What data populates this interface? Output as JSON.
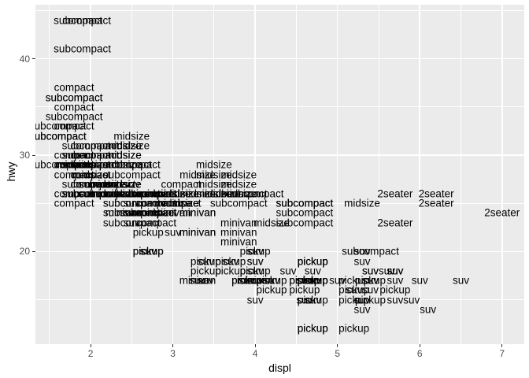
{
  "colors": {
    "panel_bg": "#EBEBEB",
    "grid": "#FFFFFF",
    "label_text": "#000000",
    "axis_text": "#4D4D4D",
    "axis_title": "#000000",
    "tick_mark": "#333333",
    "figure_bg": "#FFFFFF"
  },
  "chart_data": {
    "type": "scatter",
    "subtype": "text-labels",
    "title": "",
    "xlabel": "displ",
    "ylabel": "hwy",
    "xlim": [
      1.33,
      7.27
    ],
    "ylim": [
      10.4,
      45.6
    ],
    "x_ticks": [
      2,
      3,
      4,
      5,
      6,
      7
    ],
    "y_ticks": [
      20,
      30,
      40
    ],
    "x_minor_ticks": [
      1.5,
      2.5,
      3.5,
      4.5,
      5.5,
      6.5
    ],
    "y_minor_ticks": [
      15,
      25,
      35,
      45
    ],
    "grid": true,
    "legend": false,
    "label_field": "vehicle class",
    "points": [
      [
        1.8,
        29,
        "compact"
      ],
      [
        1.8,
        29,
        "compact"
      ],
      [
        2.0,
        31,
        "compact"
      ],
      [
        2.0,
        30,
        "compact"
      ],
      [
        2.8,
        26,
        "compact"
      ],
      [
        2.8,
        26,
        "compact"
      ],
      [
        3.1,
        27,
        "compact"
      ],
      [
        1.8,
        26,
        "compact"
      ],
      [
        1.8,
        25,
        "compact"
      ],
      [
        2.0,
        28,
        "compact"
      ],
      [
        2.0,
        27,
        "compact"
      ],
      [
        2.8,
        25,
        "compact"
      ],
      [
        2.8,
        25,
        "compact"
      ],
      [
        3.1,
        25,
        "compact"
      ],
      [
        3.1,
        25,
        "compact"
      ],
      [
        1.8,
        28,
        "compact"
      ],
      [
        1.8,
        30,
        "compact"
      ],
      [
        1.8,
        33,
        "compact"
      ],
      [
        1.8,
        35,
        "compact"
      ],
      [
        1.8,
        37,
        "compact"
      ],
      [
        2.0,
        29,
        "compact"
      ],
      [
        2.0,
        29,
        "compact"
      ],
      [
        2.0,
        28,
        "compact"
      ],
      [
        2.0,
        29,
        "compact"
      ],
      [
        2.8,
        24,
        "compact"
      ],
      [
        1.9,
        44,
        "compact"
      ],
      [
        2.0,
        29,
        "compact"
      ],
      [
        2.0,
        29,
        "compact"
      ],
      [
        2.0,
        29,
        "compact"
      ],
      [
        2.0,
        29,
        "compact"
      ],
      [
        2.5,
        29,
        "compact"
      ],
      [
        2.5,
        29,
        "compact"
      ],
      [
        2.8,
        24,
        "compact"
      ],
      [
        2.8,
        23,
        "compact"
      ],
      [
        2.8,
        24,
        "midsize"
      ],
      [
        3.1,
        25,
        "midsize"
      ],
      [
        4.2,
        23,
        "midsize"
      ],
      [
        2.4,
        30,
        "midsize"
      ],
      [
        2.4,
        29,
        "midsize"
      ],
      [
        3.1,
        26,
        "midsize"
      ],
      [
        3.5,
        29,
        "midsize"
      ],
      [
        3.6,
        26,
        "midsize"
      ],
      [
        2.4,
        26,
        "midsize"
      ],
      [
        2.4,
        27,
        "midsize"
      ],
      [
        2.4,
        30,
        "midsize"
      ],
      [
        2.4,
        31,
        "midsize"
      ],
      [
        2.5,
        26,
        "midsize"
      ],
      [
        2.5,
        26,
        "midsize"
      ],
      [
        3.3,
        28,
        "midsize"
      ],
      [
        2.4,
        29,
        "midsize"
      ],
      [
        2.4,
        27,
        "midsize"
      ],
      [
        2.5,
        31,
        "midsize"
      ],
      [
        2.5,
        32,
        "midsize"
      ],
      [
        3.5,
        26,
        "midsize"
      ],
      [
        3.5,
        27,
        "midsize"
      ],
      [
        3.0,
        26,
        "midsize"
      ],
      [
        3.0,
        25,
        "midsize"
      ],
      [
        3.5,
        26,
        "midsize"
      ],
      [
        3.1,
        26,
        "midsize"
      ],
      [
        3.8,
        26,
        "midsize"
      ],
      [
        3.8,
        27,
        "midsize"
      ],
      [
        3.8,
        28,
        "midsize"
      ],
      [
        5.3,
        25,
        "midsize"
      ],
      [
        2.2,
        26,
        "midsize"
      ],
      [
        2.2,
        27,
        "midsize"
      ],
      [
        2.4,
        30,
        "midsize"
      ],
      [
        2.4,
        31,
        "midsize"
      ],
      [
        3.0,
        26,
        "midsize"
      ],
      [
        3.0,
        26,
        "midsize"
      ],
      [
        3.5,
        28,
        "midsize"
      ],
      [
        2.2,
        26,
        "midsize"
      ],
      [
        2.2,
        27,
        "midsize"
      ],
      [
        2.4,
        31,
        "midsize"
      ],
      [
        2.4,
        31,
        "midsize"
      ],
      [
        3.0,
        26,
        "midsize"
      ],
      [
        3.0,
        26,
        "midsize"
      ],
      [
        3.3,
        26,
        "midsize"
      ],
      [
        1.8,
        29,
        "midsize"
      ],
      [
        1.8,
        29,
        "midsize"
      ],
      [
        2.0,
        28,
        "midsize"
      ],
      [
        2.0,
        29,
        "midsize"
      ],
      [
        2.8,
        26,
        "midsize"
      ],
      [
        2.8,
        26,
        "midsize"
      ],
      [
        3.6,
        26,
        "midsize"
      ],
      [
        2.4,
        24,
        "minivan"
      ],
      [
        3.0,
        24,
        "minivan"
      ],
      [
        3.3,
        22,
        "minivan"
      ],
      [
        3.3,
        22,
        "minivan"
      ],
      [
        3.3,
        24,
        "minivan"
      ],
      [
        3.3,
        24,
        "minivan"
      ],
      [
        3.3,
        17,
        "minivan"
      ],
      [
        3.8,
        22,
        "minivan"
      ],
      [
        3.8,
        21,
        "minivan"
      ],
      [
        3.8,
        23,
        "minivan"
      ],
      [
        4.0,
        17,
        "minivan"
      ],
      [
        3.7,
        19,
        "pickup"
      ],
      [
        3.7,
        18,
        "pickup"
      ],
      [
        3.9,
        17,
        "pickup"
      ],
      [
        3.9,
        17,
        "pickup"
      ],
      [
        4.7,
        19,
        "pickup"
      ],
      [
        4.7,
        19,
        "pickup"
      ],
      [
        4.7,
        12,
        "pickup"
      ],
      [
        5.2,
        17,
        "pickup"
      ],
      [
        5.2,
        15,
        "pickup"
      ],
      [
        4.7,
        17,
        "pickup"
      ],
      [
        4.7,
        15,
        "pickup"
      ],
      [
        4.7,
        17,
        "pickup"
      ],
      [
        4.7,
        17,
        "pickup"
      ],
      [
        4.7,
        19,
        "pickup"
      ],
      [
        4.7,
        17,
        "pickup"
      ],
      [
        4.7,
        12,
        "pickup"
      ],
      [
        5.2,
        16,
        "pickup"
      ],
      [
        5.2,
        12,
        "pickup"
      ],
      [
        5.7,
        16,
        "pickup"
      ],
      [
        4.2,
        17,
        "pickup"
      ],
      [
        4.2,
        16,
        "pickup"
      ],
      [
        4.6,
        16,
        "pickup"
      ],
      [
        4.6,
        17,
        "pickup"
      ],
      [
        4.6,
        17,
        "pickup"
      ],
      [
        5.4,
        15,
        "pickup"
      ],
      [
        5.4,
        17,
        "pickup"
      ],
      [
        2.7,
        20,
        "pickup"
      ],
      [
        2.7,
        20,
        "pickup"
      ],
      [
        2.7,
        22,
        "pickup"
      ],
      [
        3.4,
        19,
        "pickup"
      ],
      [
        3.4,
        18,
        "pickup"
      ],
      [
        4.0,
        20,
        "pickup"
      ],
      [
        4.0,
        18,
        "pickup"
      ],
      [
        1.6,
        33,
        "subcompact"
      ],
      [
        1.6,
        32,
        "subcompact"
      ],
      [
        1.6,
        32,
        "subcompact"
      ],
      [
        1.6,
        29,
        "subcompact"
      ],
      [
        1.6,
        32,
        "subcompact"
      ],
      [
        1.8,
        34,
        "subcompact"
      ],
      [
        1.8,
        36,
        "subcompact"
      ],
      [
        1.8,
        36,
        "subcompact"
      ],
      [
        2.0,
        29,
        "subcompact"
      ],
      [
        1.9,
        44,
        "subcompact"
      ],
      [
        1.9,
        41,
        "subcompact"
      ],
      [
        2.0,
        29,
        "subcompact"
      ],
      [
        2.0,
        26,
        "subcompact"
      ],
      [
        2.5,
        28,
        "subcompact"
      ],
      [
        2.5,
        29,
        "subcompact"
      ],
      [
        2.0,
        26,
        "subcompact"
      ],
      [
        2.0,
        27,
        "subcompact"
      ],
      [
        2.0,
        30,
        "subcompact"
      ],
      [
        2.0,
        31,
        "subcompact"
      ],
      [
        2.7,
        26,
        "subcompact"
      ],
      [
        2.7,
        26,
        "subcompact"
      ],
      [
        2.7,
        24,
        "subcompact"
      ],
      [
        3.8,
        26,
        "subcompact"
      ],
      [
        3.8,
        25,
        "subcompact"
      ],
      [
        4.0,
        26,
        "subcompact"
      ],
      [
        4.6,
        24,
        "subcompact"
      ],
      [
        4.6,
        25,
        "subcompact"
      ],
      [
        4.6,
        25,
        "subcompact"
      ],
      [
        4.6,
        25,
        "subcompact"
      ],
      [
        4.6,
        23,
        "subcompact"
      ],
      [
        5.4,
        20,
        "subcompact"
      ],
      [
        2.2,
        26,
        "subcompact"
      ],
      [
        2.2,
        27,
        "subcompact"
      ],
      [
        2.5,
        25,
        "subcompact"
      ],
      [
        2.5,
        25,
        "subcompact"
      ],
      [
        2.5,
        26,
        "subcompact"
      ],
      [
        2.5,
        23,
        "subcompact"
      ],
      [
        2.5,
        24,
        "subcompact"
      ],
      [
        2.5,
        26,
        "subcompact"
      ],
      [
        5.3,
        20,
        "suv"
      ],
      [
        5.3,
        15,
        "suv"
      ],
      [
        5.3,
        20,
        "suv"
      ],
      [
        5.7,
        17,
        "suv"
      ],
      [
        6.0,
        17,
        "suv"
      ],
      [
        5.3,
        19,
        "suv"
      ],
      [
        5.3,
        14,
        "suv"
      ],
      [
        5.7,
        15,
        "suv"
      ],
      [
        6.5,
        17,
        "suv"
      ],
      [
        3.9,
        17,
        "suv"
      ],
      [
        4.7,
        17,
        "suv"
      ],
      [
        4.7,
        17,
        "suv"
      ],
      [
        4.7,
        18,
        "suv"
      ],
      [
        5.2,
        16,
        "suv"
      ],
      [
        5.7,
        18,
        "suv"
      ],
      [
        5.9,
        15,
        "suv"
      ],
      [
        4.6,
        17,
        "suv"
      ],
      [
        5.4,
        17,
        "suv"
      ],
      [
        5.4,
        18,
        "suv"
      ],
      [
        4.0,
        17,
        "suv"
      ],
      [
        4.0,
        17,
        "suv"
      ],
      [
        4.0,
        18,
        "suv"
      ],
      [
        4.0,
        17,
        "suv"
      ],
      [
        4.0,
        19,
        "suv"
      ],
      [
        4.6,
        17,
        "suv"
      ],
      [
        3.0,
        22,
        "suv"
      ],
      [
        3.7,
        19,
        "suv"
      ],
      [
        4.0,
        17,
        "suv"
      ],
      [
        4.7,
        15,
        "suv"
      ],
      [
        4.7,
        17,
        "suv"
      ],
      [
        4.7,
        17,
        "suv"
      ],
      [
        5.7,
        18,
        "suv"
      ],
      [
        6.1,
        14,
        "suv"
      ],
      [
        4.0,
        15,
        "suv"
      ],
      [
        4.2,
        17,
        "suv"
      ],
      [
        4.4,
        18,
        "suv"
      ],
      [
        4.6,
        15,
        "suv"
      ],
      [
        5.4,
        17,
        "suv"
      ],
      [
        5.4,
        16,
        "suv"
      ],
      [
        5.4,
        18,
        "suv"
      ],
      [
        4.0,
        17,
        "suv"
      ],
      [
        4.0,
        19,
        "suv"
      ],
      [
        4.6,
        17,
        "suv"
      ],
      [
        5.0,
        17,
        "suv"
      ],
      [
        3.3,
        17,
        "suv"
      ],
      [
        3.3,
        17,
        "suv"
      ],
      [
        4.0,
        20,
        "suv"
      ],
      [
        5.6,
        18,
        "suv"
      ],
      [
        2.5,
        26,
        "suv"
      ],
      [
        2.5,
        24,
        "suv"
      ],
      [
        2.5,
        27,
        "suv"
      ],
      [
        2.5,
        25,
        "suv"
      ],
      [
        2.5,
        23,
        "suv"
      ],
      [
        2.5,
        24,
        "suv"
      ],
      [
        2.7,
        20,
        "suv"
      ],
      [
        2.7,
        20,
        "suv"
      ],
      [
        3.4,
        19,
        "suv"
      ],
      [
        3.4,
        17,
        "suv"
      ],
      [
        4.0,
        20,
        "suv"
      ],
      [
        4.7,
        17,
        "suv"
      ],
      [
        4.7,
        17,
        "suv"
      ],
      [
        5.7,
        18,
        "suv"
      ],
      [
        5.7,
        26,
        "2seater"
      ],
      [
        5.7,
        23,
        "2seater"
      ],
      [
        6.2,
        26,
        "2seater"
      ],
      [
        6.2,
        25,
        "2seater"
      ],
      [
        7.0,
        24,
        "2seater"
      ]
    ]
  }
}
